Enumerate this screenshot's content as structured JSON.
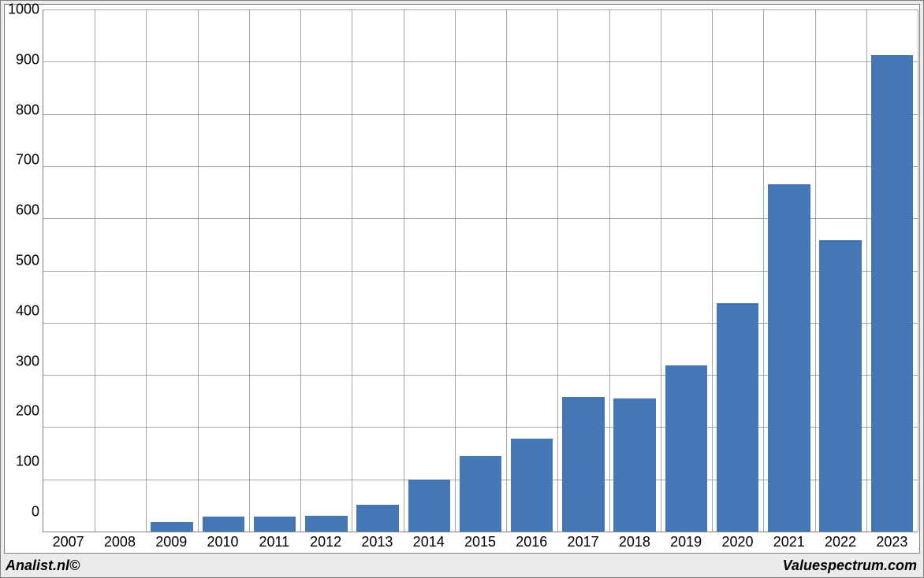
{
  "chart": {
    "type": "bar",
    "categories": [
      "2007",
      "2008",
      "2009",
      "2010",
      "2011",
      "2012",
      "2013",
      "2014",
      "2015",
      "2016",
      "2017",
      "2018",
      "2019",
      "2020",
      "2021",
      "2022",
      "2023"
    ],
    "values": [
      0,
      0,
      18,
      28,
      28,
      30,
      52,
      100,
      145,
      178,
      258,
      255,
      318,
      438,
      665,
      558,
      913
    ],
    "bar_color": "#4577b4",
    "background_color": "#ffffff",
    "outer_background_color": "#ebebeb",
    "border_color": "#808080",
    "grid_color": "#808080",
    "ylim": [
      0,
      1000
    ],
    "ytick_step": 100,
    "bar_width_ratio": 0.82,
    "label_fontsize": 18,
    "label_color": "#000000"
  },
  "footer": {
    "left": "Analist.nl©",
    "right": "Valuespectrum.com"
  }
}
